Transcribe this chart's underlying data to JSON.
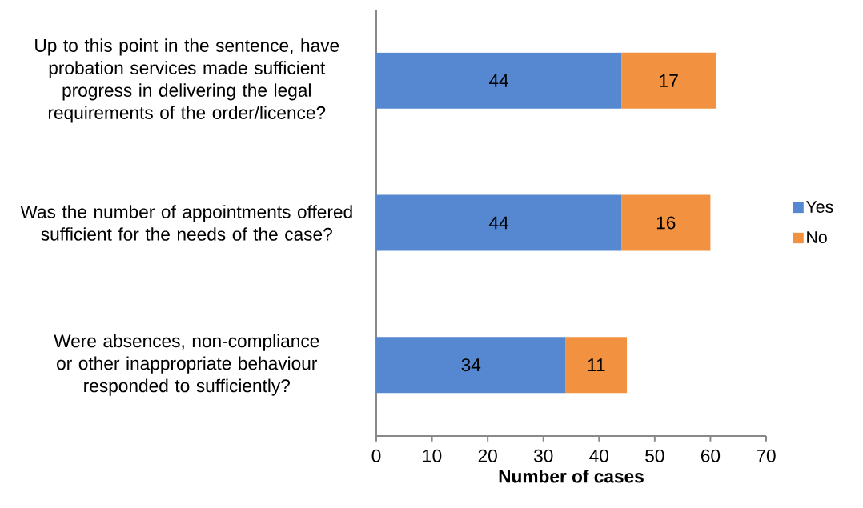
{
  "chart_data": {
    "type": "bar",
    "orientation": "horizontal",
    "stacked": true,
    "xlabel": "Number of cases",
    "categories": [
      "Up to this point in the sentence, have probation services made sufficient progress in delivering the legal requirements of the order/licence?",
      "Was the number of appointments offered sufficient for the needs of the case?",
      "Were absences, non-compliance or other inappropriate behaviour responded to sufficiently?"
    ],
    "series": [
      {
        "name": "Yes",
        "color": "#5588d0",
        "values": [
          44,
          44,
          34
        ]
      },
      {
        "name": "No",
        "color": "#f29240",
        "values": [
          17,
          16,
          11
        ]
      }
    ],
    "xlim": [
      0,
      70
    ],
    "xticks": [
      0,
      10,
      20,
      30,
      40,
      50,
      60,
      70
    ],
    "data_labels": true,
    "legend": "right",
    "grid": false
  }
}
